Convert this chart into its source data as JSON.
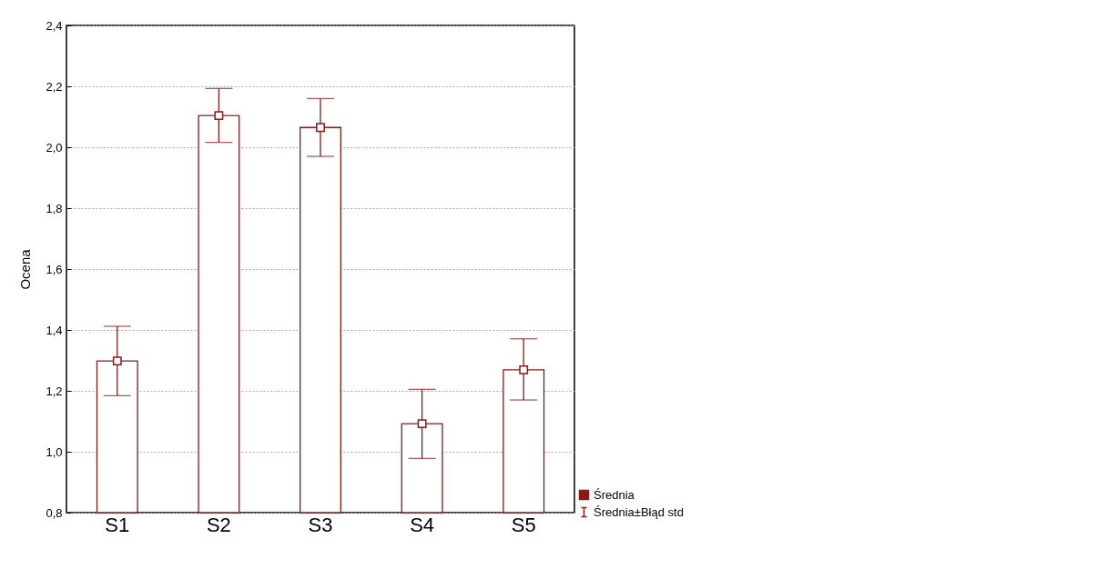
{
  "chart_data": {
    "type": "bar",
    "ylabel": "Ocena",
    "categories": [
      "S1",
      "S2",
      "S3",
      "S4",
      "S5"
    ],
    "series": [
      {
        "color": "#8b1a1a",
        "values": [
          1.298,
          2.104,
          2.065,
          1.092,
          1.269
        ]
      },
      {
        "type": "scatter",
        "name": "Średnia",
        "color": "#8b1a1a",
        "x": [
          "S1",
          "S2",
          "S3",
          "S4",
          "S5"
        ],
        "values": [
          1.298,
          2.104,
          2.065,
          1.092,
          1.269
        ],
        "errors": [
          [
            1.184,
            1.412
          ],
          [
            2.016,
            2.193
          ],
          [
            1.97,
            2.16
          ],
          [
            0.978,
            1.205
          ],
          [
            1.17,
            1.371
          ]
        ]
      }
    ],
    "ylim": [
      0.8,
      2.4
    ],
    "yticks": [
      {
        "value": 0.8,
        "label": "0,8"
      },
      {
        "value": 1.0,
        "label": "1,0"
      },
      {
        "value": 1.2,
        "label": "1,2"
      },
      {
        "value": 1.4,
        "label": "1,4"
      },
      {
        "value": 1.6,
        "label": "1,6"
      },
      {
        "value": 1.8,
        "label": "1,8"
      },
      {
        "value": 2.0,
        "label": "2,0"
      },
      {
        "value": 2.2,
        "label": "2,2"
      },
      {
        "value": 2.4,
        "label": "2,4"
      }
    ],
    "annotations": [
      "Średnia±Błąd std"
    ],
    "grid": "y",
    "legend": "bottom right",
    "marker": "square"
  }
}
